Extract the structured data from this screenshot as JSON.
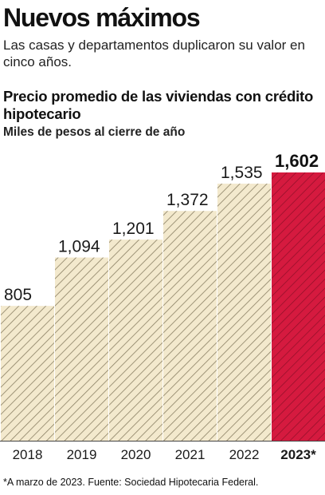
{
  "headline": "Nuevos máximos",
  "deck": "Las casas y departamentos duplicaron su valor en cinco años.",
  "footnote": "*A marzo de 2023. Fuente: Sociedad Hipotecaria Federal.",
  "colors": {
    "bar_fill": "#f3e9cd",
    "bar_stripe": "#8a7f63",
    "highlight_fill": "#d51a3f",
    "highlight_stripe": "#8f0f28"
  },
  "chart_data": {
    "type": "bar",
    "title": "Precio promedio de las viviendas con crédito hipotecario",
    "subtitle": "Miles de pesos al cierre de año",
    "categories": [
      "2018",
      "2019",
      "2020",
      "2021",
      "2022",
      "2023*"
    ],
    "values": [
      805,
      1094,
      1201,
      1372,
      1535,
      1602
    ],
    "value_labels": [
      "805",
      "1,094",
      "1,201",
      "1,372",
      "1,535",
      "1,602"
    ],
    "highlight": "2023*",
    "ylim": [
      0,
      1602
    ],
    "grid": false,
    "legend": false
  }
}
